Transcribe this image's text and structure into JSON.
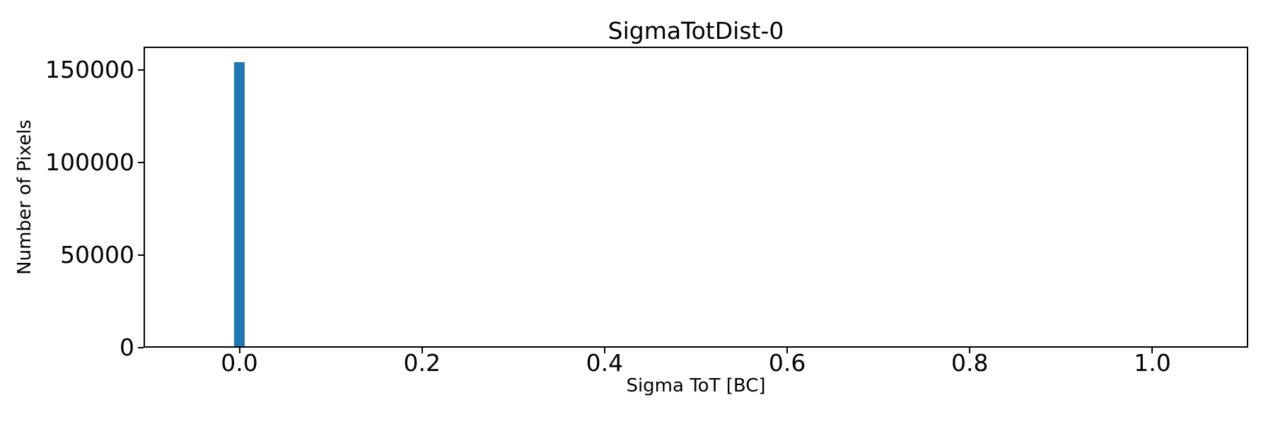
{
  "figure": {
    "background": "#ffffff",
    "text_color": "#000000",
    "spine_color": "#000000"
  },
  "chart_data": {
    "type": "bar",
    "title": "SigmaTotDist-0",
    "xlabel": "Sigma ToT [BC]",
    "ylabel": "Number of Pixels",
    "xlim": [
      -0.105,
      1.105
    ],
    "ylim": [
      0,
      162500
    ],
    "x_ticks": [
      0.0,
      0.2,
      0.4,
      0.6,
      0.8,
      1.0
    ],
    "x_tick_labels": [
      "0.0",
      "0.2",
      "0.4",
      "0.6",
      "0.8",
      "1.0"
    ],
    "y_ticks": [
      0,
      50000,
      100000,
      150000
    ],
    "y_tick_labels": [
      "0",
      "50000",
      "100000",
      "150000"
    ],
    "grid": false,
    "legend_position": "none",
    "bar_color": "#1f77b4",
    "bars": [
      {
        "x_center": 0.0,
        "width": 0.011,
        "value": 154000
      }
    ]
  }
}
